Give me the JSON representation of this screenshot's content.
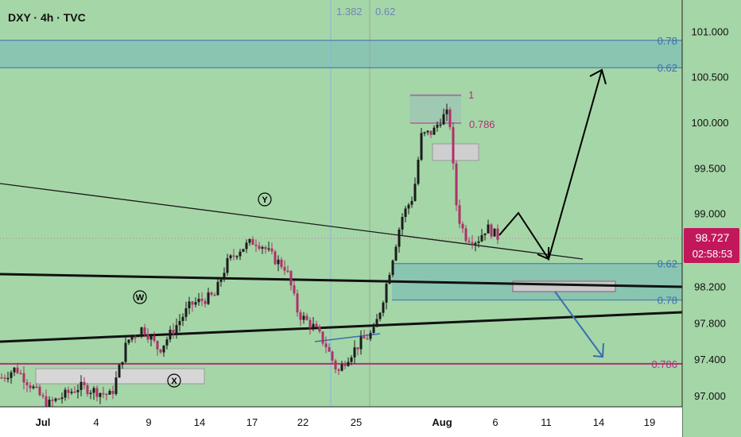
{
  "header": {
    "symbol": "DXY · 4h · TVC"
  },
  "colors": {
    "background": "#a5d6a7",
    "bull": "#1b1b1b",
    "bear": "#b0306a",
    "blue_line": "#3a6fb0",
    "magenta_line": "#b0307a",
    "zone_fill": "#86c3b3",
    "price_badge_bg": "#c2185b",
    "x_axis_bg": "#ffffff"
  },
  "price_badge": {
    "price": "98.727",
    "countdown": "02:58:53"
  },
  "fib_markers": {
    "a": "1.382",
    "b": "0.62"
  },
  "fib_levels": [
    {
      "label": "0.78",
      "price": 100.9,
      "color": "blue"
    },
    {
      "label": "0.62",
      "price": 100.6,
      "color": "blue"
    },
    {
      "label": "0.62",
      "price": 98.45,
      "color": "blue"
    },
    {
      "label": "0.78",
      "price": 98.05,
      "color": "blue"
    },
    {
      "label": "0.786",
      "price": 97.35,
      "color": "magenta"
    }
  ],
  "upper_fib": {
    "label_1": "1",
    "label_786": "0.786"
  },
  "wave_labels": {
    "w": "W",
    "x": "X",
    "y": "Y"
  },
  "chart_data": {
    "type": "candlestick",
    "title": "DXY · 4h · TVC",
    "y_ticks": [
      "101.000",
      "100.500",
      "100.000",
      "99.500",
      "99.000",
      "98.200",
      "97.800",
      "97.400",
      "97.000"
    ],
    "ylim": [
      96.9,
      101.35
    ],
    "x_ticks": [
      "Jul",
      "4",
      "9",
      "14",
      "17",
      "22",
      "25",
      "Aug",
      "6",
      "11",
      "14",
      "19"
    ],
    "last_price": 98.727,
    "legend": "none",
    "grid": false
  }
}
